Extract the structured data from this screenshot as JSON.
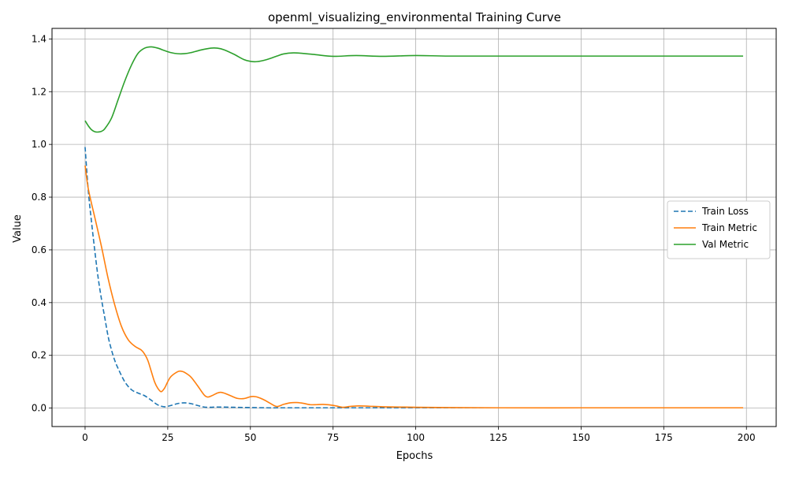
{
  "chart_data": {
    "type": "line",
    "title": "openml_visualizing_environmental Training Curve",
    "xlabel": "Epochs",
    "ylabel": "Value",
    "xlim": [
      -10,
      209
    ],
    "ylim": [
      -0.07,
      1.44
    ],
    "xticks": [
      0,
      25,
      50,
      75,
      100,
      125,
      150,
      175,
      200
    ],
    "yticks": [
      0.0,
      0.2,
      0.4,
      0.6,
      0.8,
      1.0,
      1.2,
      1.4
    ],
    "grid": true,
    "legend_position": "center-right",
    "series": [
      {
        "name": "Train Loss",
        "color": "#1f77b4",
        "dashed": true,
        "x": [
          0,
          1,
          2,
          3,
          4,
          5,
          6,
          7,
          8,
          9,
          10,
          12,
          14,
          16,
          18,
          20,
          22,
          24,
          26,
          28,
          30,
          32,
          34,
          36,
          38,
          40,
          45,
          50,
          55,
          60,
          70,
          80,
          90,
          100,
          120,
          150,
          175,
          199
        ],
        "y": [
          0.99,
          0.82,
          0.7,
          0.59,
          0.49,
          0.41,
          0.34,
          0.27,
          0.22,
          0.18,
          0.15,
          0.1,
          0.07,
          0.057,
          0.047,
          0.03,
          0.012,
          0.005,
          0.01,
          0.017,
          0.02,
          0.017,
          0.01,
          0.004,
          0.003,
          0.004,
          0.003,
          0.002,
          0.001,
          0.001,
          0.001,
          0.001,
          0.001,
          0.001,
          0.001,
          0.001,
          0.001,
          0.001
        ]
      },
      {
        "name": "Train Metric",
        "color": "#ff7f0e",
        "dashed": false,
        "x": [
          0,
          1,
          3,
          5,
          7,
          9,
          11,
          13,
          15,
          17,
          18,
          19,
          20,
          21,
          22,
          23,
          24,
          25,
          26,
          28,
          29,
          30,
          32,
          34,
          36,
          37,
          38,
          40,
          41,
          42,
          44,
          46,
          48,
          50,
          51,
          52,
          54,
          56,
          58,
          60,
          62,
          64,
          66,
          68,
          70,
          72,
          74,
          76,
          78,
          80,
          82,
          84,
          86,
          90,
          95,
          100,
          110,
          125,
          150,
          175,
          199
        ],
        "y": [
          0.92,
          0.83,
          0.72,
          0.61,
          0.49,
          0.39,
          0.31,
          0.26,
          0.235,
          0.22,
          0.205,
          0.18,
          0.14,
          0.1,
          0.075,
          0.062,
          0.075,
          0.1,
          0.12,
          0.138,
          0.14,
          0.136,
          0.118,
          0.085,
          0.05,
          0.042,
          0.045,
          0.057,
          0.06,
          0.057,
          0.047,
          0.037,
          0.036,
          0.043,
          0.044,
          0.042,
          0.032,
          0.018,
          0.006,
          0.014,
          0.02,
          0.021,
          0.018,
          0.013,
          0.013,
          0.014,
          0.012,
          0.008,
          0.003,
          0.006,
          0.008,
          0.008,
          0.007,
          0.005,
          0.004,
          0.003,
          0.002,
          0.001,
          0.001,
          0.001,
          0.001
        ]
      },
      {
        "name": "Val Metric",
        "color": "#2ca02c",
        "dashed": false,
        "x": [
          0,
          1,
          2,
          3,
          4,
          5,
          6,
          8,
          10,
          12,
          14,
          16,
          18,
          20,
          22,
          24,
          26,
          28,
          30,
          32,
          35,
          38,
          40,
          42,
          45,
          48,
          50,
          52,
          55,
          58,
          60,
          63,
          66,
          70,
          75,
          82,
          90,
          100,
          110,
          125,
          150,
          175,
          199
        ],
        "y": [
          1.09,
          1.07,
          1.055,
          1.048,
          1.047,
          1.05,
          1.06,
          1.1,
          1.17,
          1.24,
          1.3,
          1.345,
          1.365,
          1.37,
          1.365,
          1.356,
          1.348,
          1.344,
          1.344,
          1.348,
          1.358,
          1.365,
          1.365,
          1.359,
          1.342,
          1.322,
          1.315,
          1.314,
          1.322,
          1.335,
          1.343,
          1.347,
          1.345,
          1.34,
          1.334,
          1.337,
          1.334,
          1.337,
          1.335,
          1.335,
          1.335,
          1.335,
          1.335
        ]
      }
    ]
  }
}
